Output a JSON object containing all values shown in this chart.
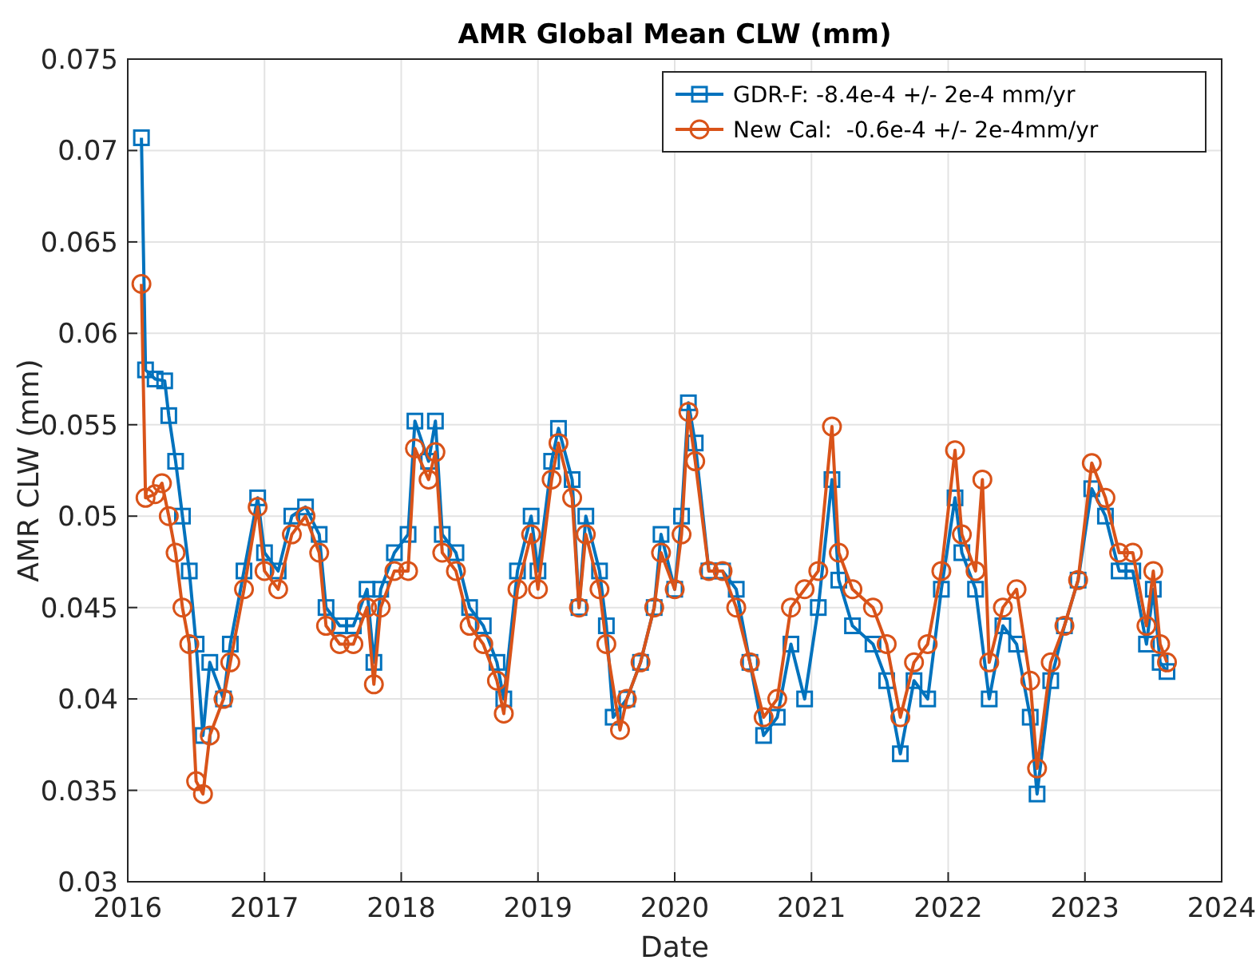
{
  "chart_data": {
    "type": "line",
    "title": "AMR Global Mean CLW (mm)",
    "xlabel": "Date",
    "ylabel": "AMR CLW (mm)",
    "xlim": [
      2016,
      2024
    ],
    "xticks": [
      2016,
      2017,
      2018,
      2019,
      2020,
      2021,
      2022,
      2023,
      2024
    ],
    "ylim": [
      0.03,
      0.075
    ],
    "yticks": [
      0.03,
      0.035,
      0.04,
      0.045,
      0.05,
      0.055,
      0.06,
      0.065,
      0.07,
      0.075
    ],
    "grid": true,
    "legend": "top right",
    "line_style": "solid",
    "series": [
      {
        "name": "GDR-F: -8.4e-4 +/- 2e-4 mm/yr",
        "color": "#0072bd",
        "marker": "square",
        "x": [
          2016.1,
          2016.13,
          2016.2,
          2016.27,
          2016.3,
          2016.35,
          2016.4,
          2016.45,
          2016.5,
          2016.55,
          2016.6,
          2016.7,
          2016.75,
          2016.85,
          2016.95,
          2017.0,
          2017.1,
          2017.2,
          2017.3,
          2017.4,
          2017.45,
          2017.55,
          2017.65,
          2017.75,
          2017.8,
          2017.85,
          2017.95,
          2018.05,
          2018.1,
          2018.2,
          2018.25,
          2018.3,
          2018.4,
          2018.5,
          2018.6,
          2018.7,
          2018.75,
          2018.85,
          2018.95,
          2019.0,
          2019.1,
          2019.15,
          2019.25,
          2019.3,
          2019.35,
          2019.45,
          2019.5,
          2019.55,
          2019.65,
          2019.75,
          2019.85,
          2019.9,
          2020.0,
          2020.05,
          2020.1,
          2020.15,
          2020.25,
          2020.35,
          2020.45,
          2020.55,
          2020.65,
          2020.75,
          2020.85,
          2020.95,
          2021.05,
          2021.15,
          2021.2,
          2021.3,
          2021.45,
          2021.55,
          2021.65,
          2021.75,
          2021.85,
          2021.95,
          2022.05,
          2022.1,
          2022.2,
          2022.3,
          2022.4,
          2022.5,
          2022.6,
          2022.65,
          2022.75,
          2022.85,
          2022.95,
          2023.05,
          2023.15,
          2023.25,
          2023.35,
          2023.45,
          2023.5,
          2023.55,
          2023.6
        ],
        "values": [
          0.0707,
          0.058,
          0.0575,
          0.0574,
          0.0555,
          0.053,
          0.05,
          0.047,
          0.043,
          0.038,
          0.042,
          0.04,
          0.043,
          0.047,
          0.051,
          0.048,
          0.047,
          0.05,
          0.0505,
          0.049,
          0.045,
          0.044,
          0.044,
          0.046,
          0.042,
          0.046,
          0.048,
          0.049,
          0.0552,
          0.053,
          0.0552,
          0.049,
          0.048,
          0.045,
          0.044,
          0.042,
          0.04,
          0.047,
          0.05,
          0.047,
          0.053,
          0.0548,
          0.052,
          0.045,
          0.05,
          0.047,
          0.044,
          0.039,
          0.04,
          0.042,
          0.045,
          0.049,
          0.046,
          0.05,
          0.0562,
          0.054,
          0.047,
          0.047,
          0.046,
          0.042,
          0.038,
          0.039,
          0.043,
          0.04,
          0.045,
          0.052,
          0.0465,
          0.044,
          0.043,
          0.041,
          0.037,
          0.041,
          0.04,
          0.046,
          0.051,
          0.048,
          0.046,
          0.04,
          0.044,
          0.043,
          0.039,
          0.0348,
          0.041,
          0.044,
          0.0465,
          0.0515,
          0.05,
          0.047,
          0.047,
          0.043,
          0.046,
          0.042,
          0.0415
        ]
      },
      {
        "name": "New Cal:  -0.6e-4 +/- 2e-4mm/yr",
        "color": "#d95319",
        "marker": "circle",
        "x": [
          2016.1,
          2016.13,
          2016.2,
          2016.25,
          2016.3,
          2016.35,
          2016.4,
          2016.45,
          2016.5,
          2016.55,
          2016.6,
          2016.7,
          2016.75,
          2016.85,
          2016.95,
          2017.0,
          2017.1,
          2017.2,
          2017.3,
          2017.4,
          2017.45,
          2017.55,
          2017.65,
          2017.75,
          2017.8,
          2017.85,
          2017.95,
          2018.05,
          2018.1,
          2018.2,
          2018.25,
          2018.3,
          2018.4,
          2018.5,
          2018.6,
          2018.7,
          2018.75,
          2018.85,
          2018.95,
          2019.0,
          2019.1,
          2019.15,
          2019.25,
          2019.3,
          2019.35,
          2019.45,
          2019.5,
          2019.6,
          2019.65,
          2019.75,
          2019.85,
          2019.9,
          2020.0,
          2020.05,
          2020.1,
          2020.15,
          2020.25,
          2020.35,
          2020.45,
          2020.55,
          2020.65,
          2020.75,
          2020.85,
          2020.95,
          2021.05,
          2021.15,
          2021.2,
          2021.3,
          2021.45,
          2021.55,
          2021.65,
          2021.75,
          2021.85,
          2021.95,
          2022.05,
          2022.1,
          2022.2,
          2022.25,
          2022.3,
          2022.4,
          2022.5,
          2022.6,
          2022.65,
          2022.75,
          2022.85,
          2022.95,
          2023.05,
          2023.15,
          2023.25,
          2023.35,
          2023.45,
          2023.5,
          2023.55,
          2023.6
        ],
        "values": [
          0.0627,
          0.051,
          0.0512,
          0.0518,
          0.05,
          0.048,
          0.045,
          0.043,
          0.0355,
          0.0348,
          0.038,
          0.04,
          0.042,
          0.046,
          0.0505,
          0.047,
          0.046,
          0.049,
          0.05,
          0.048,
          0.044,
          0.043,
          0.043,
          0.045,
          0.0408,
          0.045,
          0.047,
          0.047,
          0.0537,
          0.052,
          0.0535,
          0.048,
          0.047,
          0.044,
          0.043,
          0.041,
          0.0392,
          0.046,
          0.049,
          0.046,
          0.052,
          0.054,
          0.051,
          0.045,
          0.049,
          0.046,
          0.043,
          0.0383,
          0.04,
          0.042,
          0.045,
          0.048,
          0.046,
          0.049,
          0.0557,
          0.053,
          0.047,
          0.047,
          0.045,
          0.042,
          0.039,
          0.04,
          0.045,
          0.046,
          0.047,
          0.0549,
          0.048,
          0.046,
          0.045,
          0.043,
          0.039,
          0.042,
          0.043,
          0.047,
          0.0536,
          0.049,
          0.047,
          0.052,
          0.042,
          0.045,
          0.046,
          0.041,
          0.0362,
          0.042,
          0.044,
          0.0465,
          0.0529,
          0.051,
          0.048,
          0.048,
          0.044,
          0.047,
          0.043,
          0.042
        ]
      }
    ]
  }
}
